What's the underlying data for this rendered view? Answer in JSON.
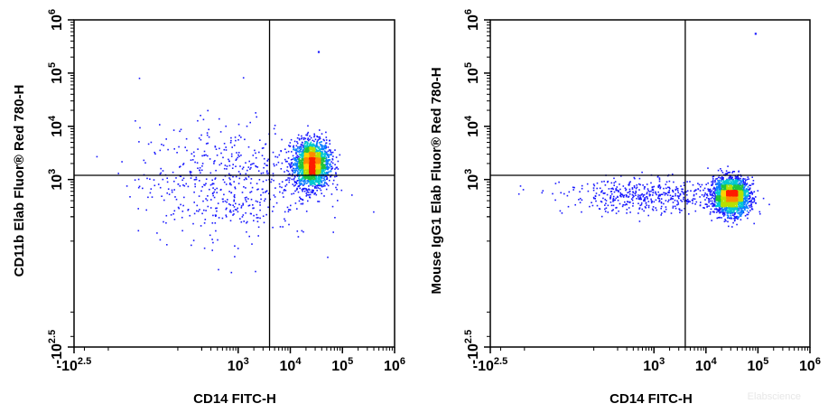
{
  "watermark": "Elabscience",
  "chart_data": [
    {
      "type": "scatter",
      "style": "density (blue to green to yellow to red = low to high)",
      "xlabel": "CD14 FITC-H",
      "ylabel": "CD11b Elab Fluor® Red 780-H",
      "x_scale": "biexponential",
      "y_scale": "biexponential",
      "xlim": [
        -316,
        1000000
      ],
      "ylim": [
        -316,
        1000000
      ],
      "x_ticks": [
        {
          "base": "-10",
          "exp": "2.5",
          "value": -316
        },
        {
          "base": "10",
          "exp": "3",
          "value": 1000
        },
        {
          "base": "10",
          "exp": "4",
          "value": 10000
        },
        {
          "base": "10",
          "exp": "5",
          "value": 100000
        },
        {
          "base": "10",
          "exp": "6",
          "value": 1000000
        }
      ],
      "y_ticks": [
        {
          "base": "-10",
          "exp": "2.5",
          "value": -316
        },
        {
          "base": "10",
          "exp": "3",
          "value": 1000
        },
        {
          "base": "10",
          "exp": "4",
          "value": 10000
        },
        {
          "base": "10",
          "exp": "5",
          "value": 100000
        },
        {
          "base": "10",
          "exp": "6",
          "value": 1000000
        }
      ],
      "quadrant_gate": {
        "x": 4000,
        "y": 1200
      },
      "populations": [
        {
          "x_center": 25000,
          "y_center": 2000,
          "fraction": 0.78,
          "note": "main CD14+ CD11b+ population"
        },
        {
          "x_center": 600,
          "y_center": 900,
          "fraction": 0.22,
          "note": "diffuse low-density events"
        }
      ],
      "outliers": [
        {
          "x": 35000,
          "y": 250000
        }
      ]
    },
    {
      "type": "scatter",
      "style": "density (blue to green to yellow to red = low to high)",
      "xlabel": "CD14 FITC-H",
      "ylabel": "Mouse IgG1 Elab Fluor® Red 780-H",
      "x_scale": "biexponential",
      "y_scale": "biexponential",
      "xlim": [
        -316,
        1000000
      ],
      "ylim": [
        -316,
        1000000
      ],
      "x_ticks": [
        {
          "base": "-10",
          "exp": "2.5",
          "value": -316
        },
        {
          "base": "10",
          "exp": "3",
          "value": 1000
        },
        {
          "base": "10",
          "exp": "4",
          "value": 10000
        },
        {
          "base": "10",
          "exp": "5",
          "value": 100000
        },
        {
          "base": "10",
          "exp": "6",
          "value": 1000000
        }
      ],
      "y_ticks": [
        {
          "base": "-10",
          "exp": "2.5",
          "value": -316
        },
        {
          "base": "10",
          "exp": "3",
          "value": 1000
        },
        {
          "base": "10",
          "exp": "4",
          "value": 10000
        },
        {
          "base": "10",
          "exp": "5",
          "value": 100000
        },
        {
          "base": "10",
          "exp": "6",
          "value": 1000000
        }
      ],
      "quadrant_gate": {
        "x": 4000,
        "y": 1200
      },
      "populations": [
        {
          "x_center": 30000,
          "y_center": 500,
          "fraction": 0.8,
          "note": "main CD14+ isotype-negative population"
        },
        {
          "x_center": 1000,
          "y_center": 500,
          "fraction": 0.2,
          "note": "low-density band across low CD14"
        }
      ],
      "outliers": [
        {
          "x": 90000,
          "y": 550000
        }
      ]
    }
  ]
}
